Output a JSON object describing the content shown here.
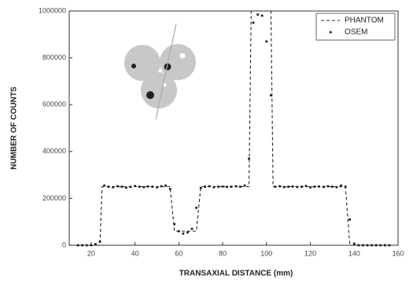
{
  "chart_data": {
    "type": "line",
    "xlabel": "TRANSAXIAL DISTANCE (mm)",
    "ylabel": "NUMBER OF COUNTS",
    "x": [
      10,
      12,
      14,
      16,
      18,
      20,
      22,
      24,
      25,
      26,
      28,
      30,
      32,
      34,
      36,
      38,
      40,
      42,
      44,
      46,
      48,
      50,
      52,
      54,
      56,
      58,
      60,
      62,
      64,
      66,
      68,
      70,
      72,
      74,
      76,
      78,
      80,
      82,
      84,
      86,
      88,
      90,
      92,
      93,
      94,
      96,
      98,
      100,
      102,
      103,
      104,
      106,
      108,
      110,
      112,
      114,
      116,
      118,
      120,
      122,
      124,
      126,
      128,
      130,
      132,
      134,
      136,
      138,
      140,
      142,
      144,
      146,
      148,
      150,
      152,
      154,
      156,
      158,
      160
    ],
    "series": [
      {
        "name": "PHANTOM",
        "type": "line",
        "color": "#222222",
        "values": [
          0,
          0,
          0,
          0,
          0,
          0,
          0,
          0,
          250000,
          250000,
          250000,
          250000,
          250000,
          250000,
          250000,
          250000,
          250000,
          250000,
          250000,
          250000,
          250000,
          250000,
          250000,
          250000,
          250000,
          60000,
          60000,
          60000,
          60000,
          60000,
          60000,
          250000,
          250000,
          250000,
          250000,
          250000,
          250000,
          250000,
          250000,
          250000,
          250000,
          250000,
          250000,
          1000000,
          1000000,
          1000000,
          1000000,
          1000000,
          1000000,
          250000,
          250000,
          250000,
          250000,
          250000,
          250000,
          250000,
          250000,
          250000,
          250000,
          250000,
          250000,
          250000,
          250000,
          250000,
          250000,
          250000,
          250000,
          0,
          0,
          0,
          0,
          0,
          0,
          0,
          0,
          0,
          0,
          0,
          null
        ]
      },
      {
        "name": "OSEM",
        "type": "scatter",
        "color": "#111111",
        "values": [
          null,
          null,
          0,
          0,
          0,
          0,
          5000,
          15000,
          null,
          255000,
          250000,
          248000,
          252000,
          250000,
          246000,
          249000,
          253000,
          250000,
          248000,
          251000,
          250000,
          247000,
          252000,
          255000,
          240000,
          90000,
          60000,
          50000,
          55000,
          70000,
          160000,
          245000,
          250000,
          252000,
          248000,
          250000,
          251000,
          249000,
          250000,
          252000,
          250000,
          255000,
          370000,
          null,
          950000,
          985000,
          980000,
          870000,
          640000,
          null,
          250000,
          252000,
          248000,
          250000,
          251000,
          249000,
          250000,
          253000,
          247000,
          250000,
          251000,
          249000,
          252000,
          250000,
          248000,
          255000,
          250000,
          110000,
          5000,
          0,
          0,
          0,
          0,
          0,
          0,
          0,
          0,
          null,
          null
        ]
      }
    ],
    "xlim": [
      10,
      160
    ],
    "xticks": [
      20,
      40,
      60,
      80,
      100,
      120,
      140,
      160
    ],
    "ylim": [
      0,
      1000000
    ],
    "yticks": [
      0,
      200000,
      400000,
      600000,
      800000,
      1000000
    ],
    "legend": "top-right"
  }
}
